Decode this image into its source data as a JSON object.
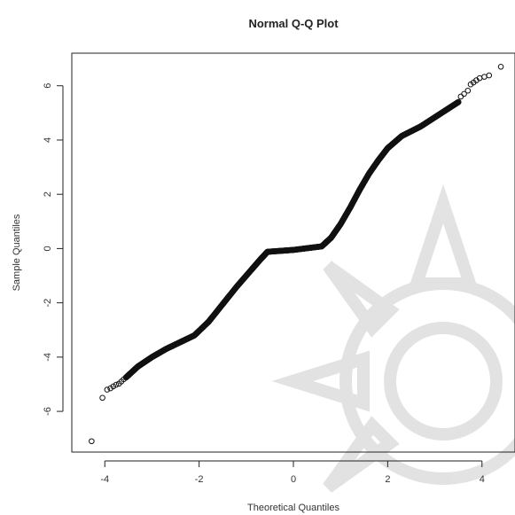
{
  "chart_data": {
    "type": "scatter",
    "title": "Normal Q-Q Plot",
    "xlabel": "Theoretical Quantiles",
    "ylabel": "Sample Quantiles",
    "xlim": [
      -4.7,
      4.7
    ],
    "ylim": [
      -7.5,
      7.2
    ],
    "xticks": [
      -4,
      -2,
      0,
      2,
      4
    ],
    "yticks": [
      -6,
      -4,
      -2,
      0,
      2,
      4,
      6
    ],
    "xtick_labels": [
      "-4",
      "-2",
      "0",
      "2",
      "4"
    ],
    "ytick_labels": [
      "-6",
      "-4",
      "-2",
      "0",
      "2",
      "4",
      "6"
    ],
    "grid": false,
    "marker": "open-circle",
    "point_color": "#111111",
    "outlier_points": [
      {
        "x": -4.28,
        "y": -7.1
      },
      {
        "x": -4.05,
        "y": -5.5
      },
      {
        "x": -3.95,
        "y": -5.2
      },
      {
        "x": -3.88,
        "y": -5.15
      },
      {
        "x": -3.82,
        "y": -5.08
      },
      {
        "x": -3.76,
        "y": -5.02
      },
      {
        "x": -3.7,
        "y": -4.98
      },
      {
        "x": -3.65,
        "y": -4.9
      },
      {
        "x": -3.6,
        "y": -4.82
      },
      {
        "x": 3.55,
        "y": 5.6
      },
      {
        "x": 3.62,
        "y": 5.7
      },
      {
        "x": 3.7,
        "y": 5.82
      },
      {
        "x": 3.76,
        "y": 6.05
      },
      {
        "x": 3.82,
        "y": 6.12
      },
      {
        "x": 3.88,
        "y": 6.2
      },
      {
        "x": 3.95,
        "y": 6.28
      },
      {
        "x": 4.05,
        "y": 6.33
      },
      {
        "x": 4.15,
        "y": 6.38
      },
      {
        "x": 4.4,
        "y": 6.7
      }
    ],
    "curve_points": [
      {
        "x": -3.55,
        "y": -4.75
      },
      {
        "x": -3.3,
        "y": -4.35
      },
      {
        "x": -3.0,
        "y": -4.0
      },
      {
        "x": -2.7,
        "y": -3.7
      },
      {
        "x": -2.4,
        "y": -3.45
      },
      {
        "x": -2.1,
        "y": -3.2
      },
      {
        "x": -1.8,
        "y": -2.7
      },
      {
        "x": -1.5,
        "y": -2.05
      },
      {
        "x": -1.2,
        "y": -1.4
      },
      {
        "x": -0.9,
        "y": -0.8
      },
      {
        "x": -0.7,
        "y": -0.4
      },
      {
        "x": -0.55,
        "y": -0.12
      },
      {
        "x": 0.0,
        "y": -0.05
      },
      {
        "x": 0.6,
        "y": 0.08
      },
      {
        "x": 0.8,
        "y": 0.4
      },
      {
        "x": 1.0,
        "y": 0.9
      },
      {
        "x": 1.2,
        "y": 1.5
      },
      {
        "x": 1.4,
        "y": 2.15
      },
      {
        "x": 1.6,
        "y": 2.75
      },
      {
        "x": 1.8,
        "y": 3.25
      },
      {
        "x": 2.0,
        "y": 3.7
      },
      {
        "x": 2.3,
        "y": 4.15
      },
      {
        "x": 2.7,
        "y": 4.5
      },
      {
        "x": 3.1,
        "y": 4.95
      },
      {
        "x": 3.5,
        "y": 5.4
      }
    ]
  }
}
